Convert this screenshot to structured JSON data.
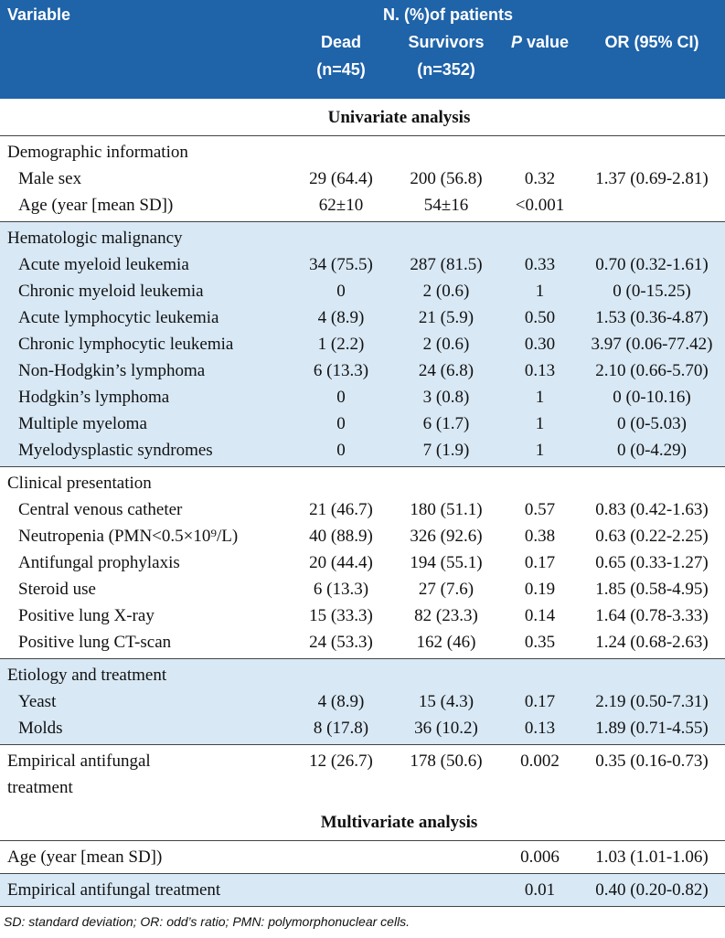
{
  "header": {
    "variable": "Variable",
    "group_title": "N. (%)of patients",
    "columns": [
      {
        "label": "Dead",
        "sub": "(n=45)"
      },
      {
        "label": "Survivors",
        "sub": "(n=352)"
      },
      {
        "italic": "P",
        "label": "value"
      },
      {
        "label": "OR (95% CI)"
      }
    ]
  },
  "sections": [
    {
      "title": "Univariate analysis",
      "groups": [
        {
          "title": "Demographic information",
          "shaded": false,
          "rows": [
            {
              "label": "Male sex",
              "cells": [
                "29 (64.4)",
                "200 (56.8)",
                "0.32",
                "1.37 (0.69-2.81)"
              ]
            },
            {
              "label": "Age (year [mean SD])",
              "cells": [
                "62±10",
                "54±16",
                "<0.001",
                null
              ]
            }
          ]
        },
        {
          "title": "Hematologic malignancy",
          "shaded": true,
          "rows": [
            {
              "label": "Acute myeloid leukemia",
              "cells": [
                "34 (75.5)",
                "287 (81.5)",
                "0.33",
                "0.70 (0.32-1.61)"
              ]
            },
            {
              "label": "Chronic myeloid leukemia",
              "cells": [
                "0",
                "2 (0.6)",
                "1",
                "0 (0-15.25)"
              ]
            },
            {
              "label": "Acute lymphocytic leukemia",
              "cells": [
                "4 (8.9)",
                "21 (5.9)",
                "0.50",
                "1.53 (0.36-4.87)"
              ]
            },
            {
              "label": "Chronic lymphocytic leukemia",
              "cells": [
                "1 (2.2)",
                "2 (0.6)",
                "0.30",
                "3.97 (0.06-77.42)"
              ]
            },
            {
              "label": "Non-Hodgkin’s lymphoma",
              "cells": [
                "6 (13.3)",
                "24 (6.8)",
                "0.13",
                "2.10 (0.66-5.70)"
              ]
            },
            {
              "label": "Hodgkin’s lymphoma",
              "cells": [
                "0",
                "3 (0.8)",
                "1",
                "0 (0-10.16)"
              ]
            },
            {
              "label": "Multiple myeloma",
              "cells": [
                "0",
                "6 (1.7)",
                "1",
                "0 (0-5.03)"
              ]
            },
            {
              "label": "Myelodysplastic syndromes",
              "cells": [
                "0",
                "7 (1.9)",
                "1",
                "0 (0-4.29)"
              ]
            }
          ]
        },
        {
          "title": "Clinical presentation",
          "shaded": false,
          "rows": [
            {
              "label": "Central venous catheter",
              "cells": [
                "21 (46.7)",
                "180 (51.1)",
                "0.57",
                "0.83 (0.42-1.63)"
              ]
            },
            {
              "label": "Neutropenia (PMN<0.5×10⁹/L)",
              "cells": [
                "40 (88.9)",
                "326 (92.6)",
                "0.38",
                "0.63 (0.22-2.25)"
              ]
            },
            {
              "label": "Antifungal prophylaxis",
              "cells": [
                "20 (44.4)",
                "194 (55.1)",
                "0.17",
                "0.65 (0.33-1.27)"
              ]
            },
            {
              "label": "Steroid use",
              "cells": [
                "6 (13.3)",
                "27 (7.6)",
                "0.19",
                "1.85 (0.58-4.95)"
              ]
            },
            {
              "label": "Positive lung X-ray",
              "cells": [
                "15 (33.3)",
                "82 (23.3)",
                "0.14",
                "1.64 (0.78-3.33)"
              ]
            },
            {
              "label": "Positive lung CT-scan",
              "cells": [
                "24 (53.3)",
                "162 (46)",
                "0.35",
                "1.24 (0.68-2.63)"
              ]
            }
          ]
        },
        {
          "title": "Etiology and treatment",
          "shaded": true,
          "rows": [
            {
              "label": "Yeast",
              "cells": [
                "4 (8.9)",
                "15 (4.3)",
                "0.17",
                "2.19 (0.50-7.31)"
              ]
            },
            {
              "label": "Molds",
              "cells": [
                "8 (17.8)",
                "36 (10.2)",
                "0.13",
                "1.89 (0.71-4.55)"
              ]
            }
          ]
        },
        {
          "shaded": false,
          "rows": [
            {
              "label": "Empirical antifungal\ntreatment",
              "cells": [
                "12 (26.7)",
                "178 (50.6)",
                "0.002",
                "0.35 (0.16-0.73)"
              ]
            }
          ]
        }
      ]
    },
    {
      "title": "Multivariate analysis",
      "groups": [
        {
          "shaded": false,
          "rows": [
            {
              "label": "Age (year [mean SD])",
              "cells": [
                null,
                null,
                "0.006",
                "1.03 (1.01-1.06)"
              ]
            }
          ]
        },
        {
          "shaded": true,
          "rows": [
            {
              "label": "Empirical antifungal treatment",
              "cells": [
                null,
                null,
                "0.01",
                "0.40 (0.20-0.82)"
              ]
            }
          ]
        }
      ]
    }
  ],
  "footnote": "SD: standard deviation; OR: odd’s ratio; PMN: polymorphonuclear cells."
}
